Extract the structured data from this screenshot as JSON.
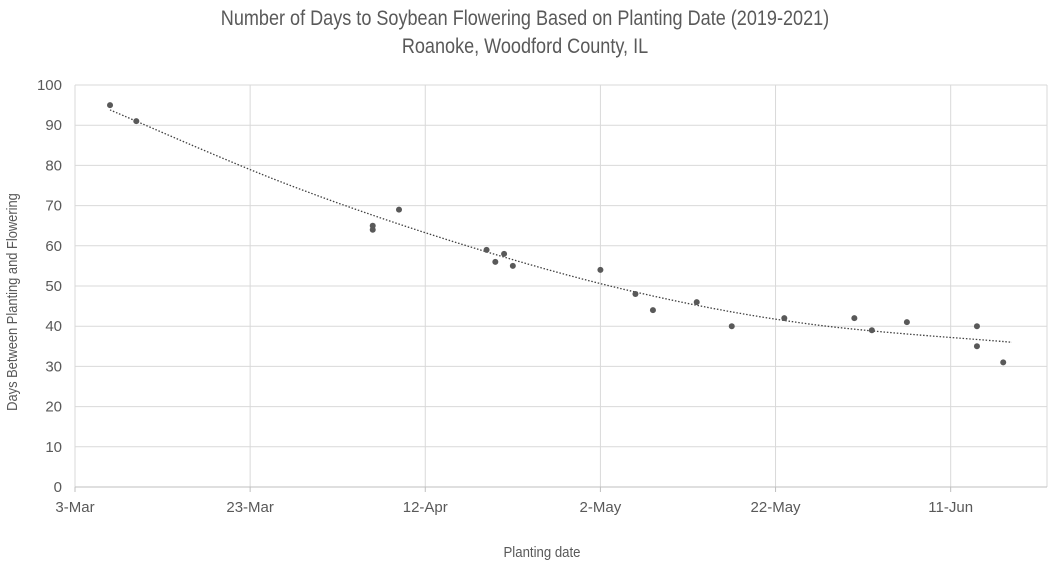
{
  "chart_data": {
    "type": "scatter",
    "title": "Number of Days to Soybean Flowering Based on Planting Date (2019-2021)",
    "subtitle": "Roanoke, Woodford County, IL",
    "xlabel": "Planting date",
    "ylabel": "Days Between Planting and Flowering",
    "xlim": [
      "2021-03-03",
      "2021-06-22"
    ],
    "ylim": [
      0,
      100
    ],
    "x_ticks": [
      {
        "date": "2021-03-03",
        "label": "3-Mar"
      },
      {
        "date": "2021-03-23",
        "label": "23-Mar"
      },
      {
        "date": "2021-04-12",
        "label": "12-Apr"
      },
      {
        "date": "2021-05-02",
        "label": "2-May"
      },
      {
        "date": "2021-05-22",
        "label": "22-May"
      },
      {
        "date": "2021-06-11",
        "label": "11-Jun"
      }
    ],
    "y_ticks": [
      0,
      10,
      20,
      30,
      40,
      50,
      60,
      70,
      80,
      90,
      100
    ],
    "grid": true,
    "point_color": "#595959",
    "trendline": {
      "type": "polynomial",
      "style": "dotted",
      "color": "#404040",
      "points": [
        {
          "x": "2021-03-07",
          "y": 93.8
        },
        {
          "x": "2021-03-27",
          "y": 75.5
        },
        {
          "x": "2021-04-16",
          "y": 60.5
        },
        {
          "x": "2021-05-06",
          "y": 48.5
        },
        {
          "x": "2021-05-26",
          "y": 40.5
        },
        {
          "x": "2021-06-18",
          "y": 36
        }
      ]
    },
    "series": [
      {
        "points": [
          {
            "x": "2021-03-07",
            "y": 95
          },
          {
            "x": "2021-03-10",
            "y": 91
          },
          {
            "x": "2021-04-06",
            "y": 65
          },
          {
            "x": "2021-04-06",
            "y": 64
          },
          {
            "x": "2021-04-09",
            "y": 69
          },
          {
            "x": "2021-04-19",
            "y": 59
          },
          {
            "x": "2021-04-20",
            "y": 56
          },
          {
            "x": "2021-04-21",
            "y": 58
          },
          {
            "x": "2021-04-22",
            "y": 55
          },
          {
            "x": "2021-05-02",
            "y": 54
          },
          {
            "x": "2021-05-06",
            "y": 48
          },
          {
            "x": "2021-05-08",
            "y": 44
          },
          {
            "x": "2021-05-13",
            "y": 46
          },
          {
            "x": "2021-05-17",
            "y": 40
          },
          {
            "x": "2021-05-23",
            "y": 42
          },
          {
            "x": "2021-05-31",
            "y": 42
          },
          {
            "x": "2021-06-02",
            "y": 39
          },
          {
            "x": "2021-06-06",
            "y": 41
          },
          {
            "x": "2021-06-14",
            "y": 40
          },
          {
            "x": "2021-06-14",
            "y": 35
          },
          {
            "x": "2021-06-17",
            "y": 31
          }
        ]
      }
    ]
  }
}
